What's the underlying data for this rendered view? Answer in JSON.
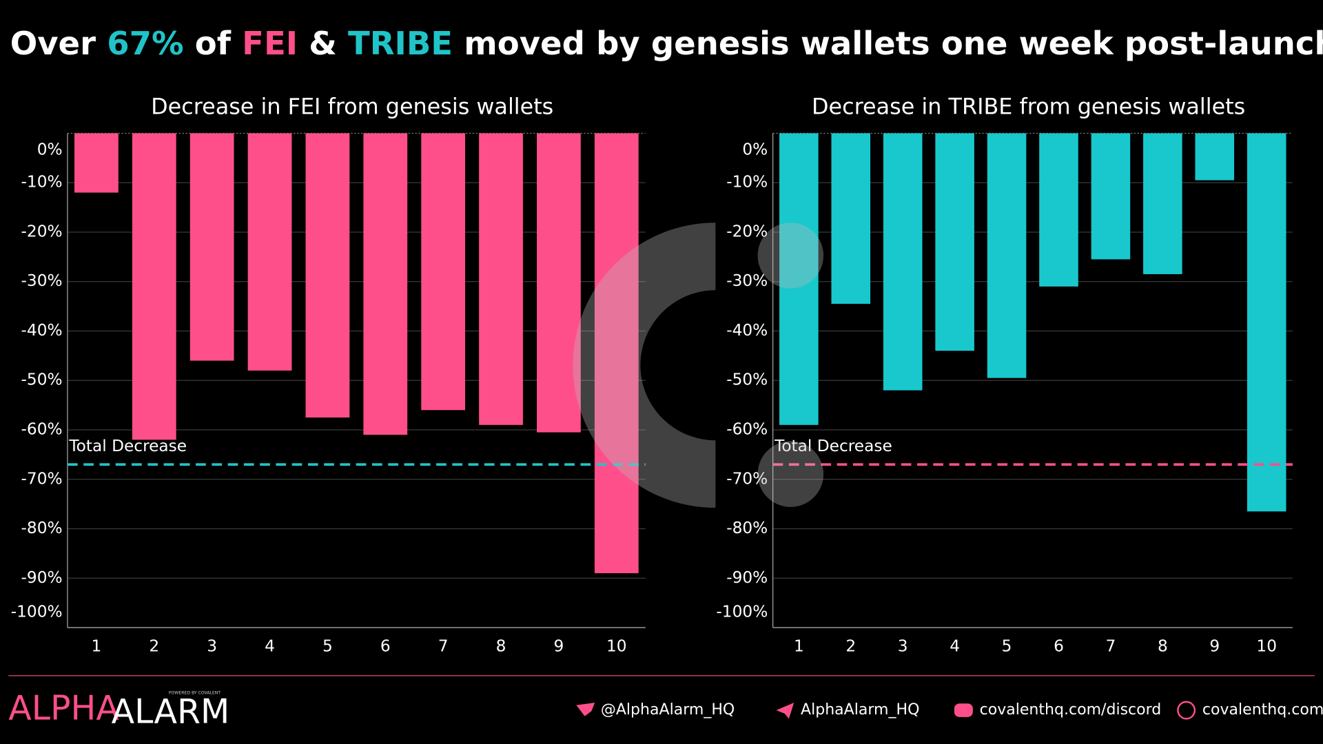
{
  "headline": [
    "Over ",
    "67%",
    " of ",
    "FEI",
    " & ",
    "TRIBE",
    " moved by genesis wallets one week post-launch."
  ],
  "chart_data": [
    {
      "type": "bar",
      "title": "Decrease in FEI from genesis wallets",
      "categories": [
        "1",
        "2",
        "3",
        "4",
        "5",
        "6",
        "7",
        "8",
        "9",
        "10"
      ],
      "values": [
        -12,
        -62,
        -46,
        -48,
        -57.5,
        -61,
        -56,
        -59,
        -60.5,
        -89
      ],
      "color": "#ff4f8b",
      "ylim": [
        -100,
        0
      ],
      "yticks": [
        {
          "value": 0,
          "label": "0%"
        },
        {
          "value": -10,
          "label": "-10%"
        },
        {
          "value": -20,
          "label": "-20%"
        },
        {
          "value": -30,
          "label": "-30%"
        },
        {
          "value": -40,
          "label": "-40%"
        },
        {
          "value": -50,
          "label": "-50%"
        },
        {
          "value": -60,
          "label": "-60%"
        },
        {
          "value": -70,
          "label": "-70%"
        },
        {
          "value": -80,
          "label": "-80%"
        },
        {
          "value": -90,
          "label": "-90%"
        },
        {
          "value": -100,
          "label": "-100%"
        }
      ],
      "grid": true,
      "reference_line": {
        "label": "Total Decrease",
        "value": -67,
        "color": "#20c4c8"
      }
    },
    {
      "type": "bar",
      "title": "Decrease in TRIBE from genesis wallets",
      "categories": [
        "1",
        "2",
        "3",
        "4",
        "5",
        "6",
        "7",
        "8",
        "9",
        "10"
      ],
      "values": [
        -59,
        -34.5,
        -52,
        -44,
        -49.5,
        -31,
        -25.5,
        -28.5,
        -9.5,
        -76.5
      ],
      "color": "#18c8cc",
      "ylim": [
        -100,
        0
      ],
      "yticks": [
        {
          "value": 0,
          "label": "0%"
        },
        {
          "value": -10,
          "label": "-10%"
        },
        {
          "value": -20,
          "label": "-20%"
        },
        {
          "value": -30,
          "label": "-30%"
        },
        {
          "value": -40,
          "label": "-40%"
        },
        {
          "value": -50,
          "label": "-50%"
        },
        {
          "value": -60,
          "label": "-60%"
        },
        {
          "value": -70,
          "label": "-70%"
        },
        {
          "value": -80,
          "label": "-80%"
        },
        {
          "value": -90,
          "label": "-90%"
        },
        {
          "value": -100,
          "label": "-100%"
        }
      ],
      "grid": true,
      "reference_line": {
        "label": "Total Decrease",
        "value": -67,
        "color": "#ff4f8b"
      }
    }
  ],
  "footer": {
    "logo_left": "ALPHA",
    "logo_right": "ALARM",
    "logo_tag": "POWERED BY COVALENT",
    "links": [
      "@AlphaAlarm_HQ",
      "AlphaAlarm_HQ",
      "covalenthq.com/discord",
      "covalenthq.com"
    ]
  }
}
